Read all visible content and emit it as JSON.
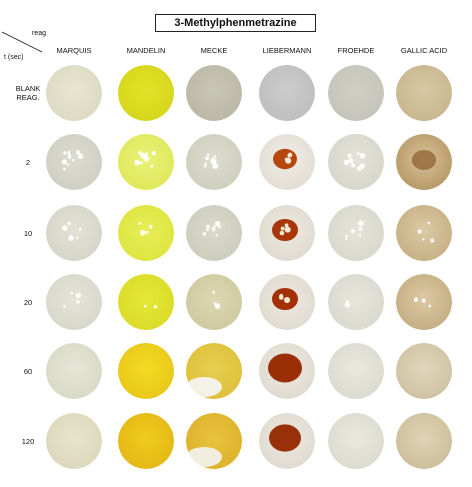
{
  "title": "3-Methylphenmetrazine",
  "corner": {
    "top_label": "reag",
    "left_label": "t (sec)"
  },
  "reagents": [
    "MARQUIS",
    "MANDELIN",
    "MECKE",
    "LIEBERMANN",
    "FROEHDE",
    "GALLIC ACID"
  ],
  "times": [
    "BLANK\nREAG.",
    "2",
    "10",
    "20",
    "60",
    "120"
  ],
  "wells": [
    [
      {
        "base": "#e8e6cf",
        "edge": "#dcdac2",
        "spot": null,
        "spots": 0
      },
      {
        "base": "#e2e22a",
        "edge": "#d6d61c",
        "spot": null,
        "spots": 0
      },
      {
        "base": "#c8c6b4",
        "edge": "#bbb9a6",
        "spot": null,
        "spots": 0
      },
      {
        "base": "#cccccc",
        "edge": "#bfbfbf",
        "spot": null,
        "spots": 0
      },
      {
        "base": "#cfcfc6",
        "edge": "#c4c4ba",
        "spot": null,
        "spots": 0
      },
      {
        "base": "#d7c9a4",
        "edge": "#c8b78f",
        "spot": null,
        "spots": 0
      }
    ],
    [
      {
        "base": "#dcdcd2",
        "edge": "#cfcfc4",
        "spot": "#ffffff",
        "spots": 5
      },
      {
        "base": "#eaf27a",
        "edge": "#dfe85a",
        "spot": "#ffffff",
        "spots": 6
      },
      {
        "base": "#ddddcf",
        "edge": "#cfcfbf",
        "spot": "#ffffff",
        "spots": 5
      },
      {
        "base": "#f0ede6",
        "edge": "#e3ded4",
        "spot": "#b5470f",
        "spots": 1
      },
      {
        "base": "#e3e3d9",
        "edge": "#d6d6cb",
        "spot": "#ffffff",
        "spots": 5
      },
      {
        "base": "#d8c29a",
        "edge": "#b79a68",
        "spot": "#8a5a2a",
        "spots": 1
      }
    ],
    [
      {
        "base": "#e2e2d6",
        "edge": "#d5d5c8",
        "spot": "#ffffff",
        "spots": 3
      },
      {
        "base": "#e8ee58",
        "edge": "#dde541",
        "spot": "#ffffff",
        "spots": 2
      },
      {
        "base": "#dadacb",
        "edge": "#cdcdbd",
        "spot": "#ffffff",
        "spots": 4
      },
      {
        "base": "#eeeae2",
        "edge": "#e0dbd0",
        "spot": "#a8360a",
        "spots": 1
      },
      {
        "base": "#e4e4da",
        "edge": "#d8d8cc",
        "spot": "#ffffff",
        "spots": 3
      },
      {
        "base": "#dccaa5",
        "edge": "#c7b186",
        "spot": "#ffffff",
        "spots": 2
      }
    ],
    [
      {
        "base": "#e4e4d8",
        "edge": "#d7d7ca",
        "spot": "#ffffff",
        "spots": 2
      },
      {
        "base": "#e6e838",
        "edge": "#dadc28",
        "spot": "#ffffff",
        "spots": 1
      },
      {
        "base": "#dcd8b4",
        "edge": "#cfcaa0",
        "spot": "#ffffff",
        "spots": 2
      },
      {
        "base": "#eeeae2",
        "edge": "#e0dbd0",
        "spot": "#a33006",
        "spots": 1
      },
      {
        "base": "#e6e6dd",
        "edge": "#d9d9cf",
        "spot": "#ffffff",
        "spots": 1
      },
      {
        "base": "#dcc9a3",
        "edge": "#c6ae84",
        "spot": "#ffffff",
        "spots": 2
      }
    ],
    [
      {
        "base": "#e6e6d6",
        "edge": "#d9d9c8",
        "spot": null,
        "spots": 0
      },
      {
        "base": "#f2dc22",
        "edge": "#e9c81a",
        "spot": null,
        "spots": 0
      },
      {
        "base": "#e7cf50",
        "edge": "#dfc03a",
        "spot": "#f4f1e6",
        "spots": 1
      },
      {
        "base": "#eeeae2",
        "edge": "#e0dbd0",
        "spot": "#9a2e05",
        "spots": 1
      },
      {
        "base": "#e8e8df",
        "edge": "#dbdbd1",
        "spot": null,
        "spots": 0
      },
      {
        "base": "#e0d6bc",
        "edge": "#cfc3a3",
        "spot": null,
        "spots": 0
      }
    ],
    [
      {
        "base": "#e8e4cc",
        "edge": "#dcd7bc",
        "spot": null,
        "spots": 0
      },
      {
        "base": "#efcc1c",
        "edge": "#e5b816",
        "spot": null,
        "spots": 0
      },
      {
        "base": "#e8c43e",
        "edge": "#deb22c",
        "spot": "#f2eedf",
        "spots": 1
      },
      {
        "base": "#eeeae2",
        "edge": "#e0dbd0",
        "spot": "#98310a",
        "spots": 1
      },
      {
        "base": "#e8e8dd",
        "edge": "#dbdbcf",
        "spot": null,
        "spots": 0
      },
      {
        "base": "#dfd4b6",
        "edge": "#cdbf9c",
        "spot": null,
        "spots": 0
      }
    ]
  ]
}
